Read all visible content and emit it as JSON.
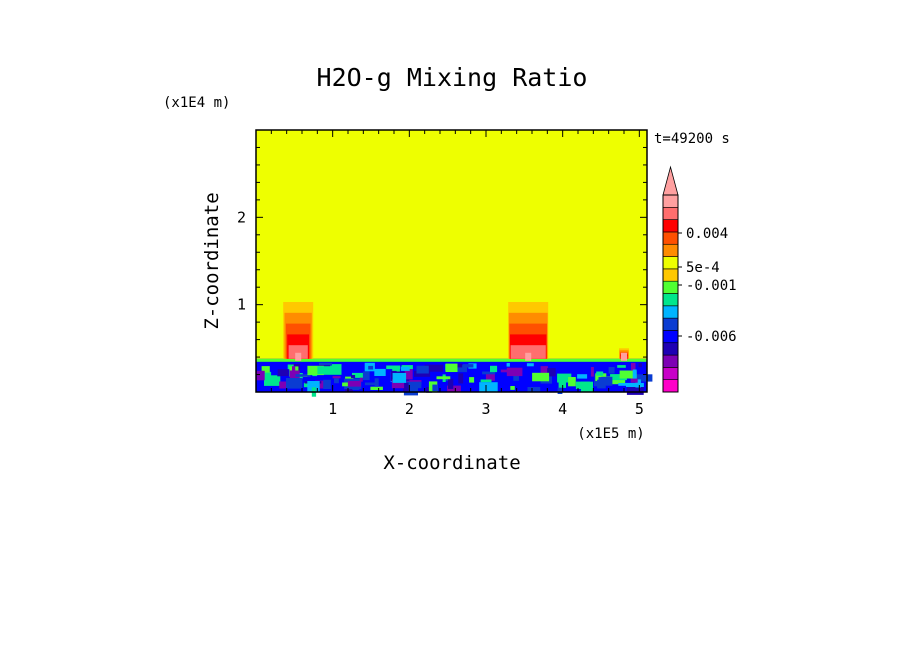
{
  "chart_data": {
    "type": "heatmap",
    "title": "H2O-g Mixing Ratio",
    "time_label": "t=49200 s",
    "xlabel": "X-coordinate",
    "ylabel": "Z-coordinate",
    "x_scale_label": "(x1E5 m)",
    "z_scale_label": "(x1E4 m)",
    "xlim": [
      0,
      5.1
    ],
    "zlim": [
      0,
      3
    ],
    "x_ticks": [
      "1",
      "2",
      "3",
      "4",
      "5"
    ],
    "z_ticks": [
      "1",
      "2"
    ],
    "colorbar_labels": [
      "0.004",
      "5e-4",
      "-0.001",
      "-0.006"
    ],
    "colorbar_colors": [
      "#ff00c8",
      "#c800c8",
      "#7d00b4",
      "#1e00b4",
      "#0000ff",
      "#0a3cd2",
      "#00b4ff",
      "#00e68c",
      "#50ff32",
      "#ffc800",
      "#eeff00",
      "#ff8c00",
      "#ff5000",
      "#ff0000",
      "#ff6e6e",
      "#ffa0a0"
    ],
    "background_color": "#eeff00",
    "surface_layer_top_z": 0.38,
    "plumes": [
      {
        "x_center": 0.55,
        "top_z": 1.03
      },
      {
        "x_center": 3.55,
        "top_z": 1.03
      },
      {
        "x_center": 4.8,
        "top_z": 0.5
      }
    ]
  }
}
